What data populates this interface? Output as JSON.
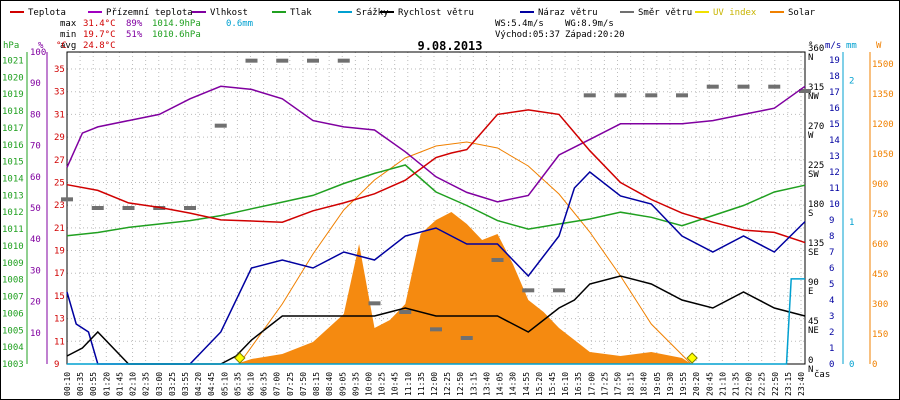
{
  "chart_data": {
    "type": "line",
    "title": "9.08.2013",
    "legend": [
      {
        "name": "Teplota",
        "color": "#d00000"
      },
      {
        "name": "Přízemní teplota",
        "color": "#a000c0"
      },
      {
        "name": "Vlhkost",
        "color": "#8000a0"
      },
      {
        "name": "Tlak",
        "color": "#20a020"
      },
      {
        "name": "Srážky",
        "color": "#00a0d0"
      },
      {
        "name": "Rychlost větru",
        "color": "#000000"
      },
      {
        "name": "Náraz větru",
        "color": "#0000a0"
      },
      {
        "name": "Směr větru",
        "color": "#707070"
      },
      {
        "name": "UV index",
        "color": "#f0e000"
      },
      {
        "name": "Solar",
        "color": "#f08000"
      }
    ],
    "stats": {
      "max_label": "max",
      "max_temp": "31.4°C",
      "max_hum": "89%",
      "max_press": "1014.9hPa",
      "rain": "0.6mm",
      "min_label": "min",
      "min_temp": "19.7°C",
      "min_hum": "51%",
      "min_press": "1010.6hPa",
      "avg_label": "avg",
      "avg_temp": "24.8°C",
      "ws": "WS:5.4m/s",
      "wg": "WG:8.9m/s",
      "sunrise": "Východ:05:37",
      "sunset": "Západ:20:20"
    },
    "axes": {
      "hpa": {
        "unit": "hPa",
        "ticks": [
          "1003",
          "1004",
          "1005",
          "1006",
          "1007",
          "1008",
          "1009",
          "1010",
          "1011",
          "1012",
          "1013",
          "1014",
          "1015",
          "1016",
          "1017",
          "1018",
          "1019",
          "1020",
          "1021"
        ]
      },
      "percent": {
        "unit": "%",
        "ticks": [
          "10",
          "20",
          "30",
          "40",
          "50",
          "60",
          "70",
          "80",
          "90",
          "100"
        ]
      },
      "temp": {
        "unit": "°C",
        "ticks": [
          "9",
          "11",
          "13",
          "15",
          "17",
          "19",
          "21",
          "23",
          "25",
          "27",
          "29",
          "31",
          "33",
          "35"
        ]
      },
      "deg": {
        "unit": "°",
        "ticks": [
          [
            "0",
            "N"
          ],
          [
            "45",
            "NE"
          ],
          [
            "90",
            "E"
          ],
          [
            "135",
            "SE"
          ],
          [
            "180",
            "S"
          ],
          [
            "225",
            "SW"
          ],
          [
            "270",
            "W"
          ],
          [
            "315",
            "NW"
          ],
          [
            "360",
            "N"
          ]
        ]
      },
      "ms": {
        "unit": "m/s",
        "ticks": [
          "0",
          "1",
          "2",
          "3",
          "4",
          "5",
          "6",
          "7",
          "8",
          "9",
          "10",
          "11",
          "12",
          "13",
          "14",
          "15",
          "16",
          "17",
          "18",
          "19"
        ]
      },
      "mm": {
        "unit": "mm",
        "ticks": [
          "0",
          "1",
          "2"
        ]
      },
      "w": {
        "unit": "W",
        "ticks": [
          "0",
          "150",
          "300",
          "450",
          "600",
          "750",
          "900",
          "1050",
          "1200",
          "1350",
          "1500"
        ]
      }
    },
    "time_label": "čas",
    "x_labels": [
      "00:10",
      "00:35",
      "00:55",
      "01:20",
      "01:45",
      "02:10",
      "02:35",
      "03:00",
      "03:25",
      "03:55",
      "04:20",
      "04:45",
      "05:10",
      "05:35",
      "06:10",
      "06:35",
      "07:00",
      "07:25",
      "07:50",
      "08:15",
      "08:40",
      "09:05",
      "09:35",
      "10:00",
      "10:25",
      "10:45",
      "11:10",
      "11:35",
      "12:00",
      "12:25",
      "12:50",
      "13:15",
      "13:40",
      "14:05",
      "14:30",
      "14:55",
      "15:20",
      "15:45",
      "16:10",
      "16:35",
      "17:00",
      "17:25",
      "17:50",
      "18:15",
      "18:40",
      "19:05",
      "19:30",
      "19:55",
      "20:20",
      "20:45",
      "21:10",
      "21:35",
      "22:00",
      "22:25",
      "22:50",
      "23:15",
      "23:40"
    ],
    "x_range_hours": [
      0,
      24
    ],
    "series": [
      {
        "name": "Teplota",
        "unit": "°C",
        "x": [
          0,
          1,
          2,
          3,
          4,
          5,
          6,
          7,
          8,
          9,
          10,
          11,
          12,
          12.5,
          13,
          14,
          15,
          16,
          17,
          18,
          19,
          20,
          21,
          22,
          23,
          24
        ],
        "values": [
          24.8,
          24.3,
          23.2,
          22.8,
          22.3,
          21.7,
          21.6,
          21.5,
          22.5,
          23.2,
          24.0,
          25.2,
          27.2,
          27.6,
          27.9,
          31.0,
          31.4,
          31.0,
          27.8,
          25.0,
          23.5,
          22.3,
          21.5,
          20.8,
          20.6,
          19.7
        ]
      },
      {
        "name": "Vlhkost",
        "unit": "%",
        "x": [
          0,
          0.5,
          1,
          2,
          3,
          4,
          5,
          6,
          7,
          8,
          9,
          10,
          11,
          12,
          13,
          14,
          15,
          16,
          17,
          18,
          19,
          20,
          21,
          22,
          23,
          24
        ],
        "values": [
          63,
          74,
          76,
          78,
          80,
          85,
          89,
          88,
          85,
          78,
          76,
          75,
          68,
          60,
          55,
          52,
          54,
          67,
          72,
          77,
          77,
          77,
          78,
          80,
          82,
          89
        ]
      },
      {
        "name": "Tlak",
        "unit": "hPa",
        "x": [
          0,
          1,
          2,
          3,
          4,
          5,
          6,
          7,
          8,
          9,
          10,
          11,
          12,
          13,
          14,
          15,
          16,
          17,
          18,
          19,
          20,
          21,
          22,
          23,
          24
        ],
        "values": [
          1010.6,
          1010.8,
          1011.1,
          1011.3,
          1011.5,
          1011.8,
          1012.2,
          1012.6,
          1013.0,
          1013.7,
          1014.3,
          1014.8,
          1013.2,
          1012.4,
          1011.5,
          1011.0,
          1011.3,
          1011.6,
          1012.0,
          1011.7,
          1011.2,
          1011.8,
          1012.4,
          1013.2,
          1013.6
        ]
      },
      {
        "name": "Náraz větru",
        "unit": "m/s",
        "x": [
          0,
          0.3,
          0.7,
          1,
          2,
          3,
          4,
          5,
          6,
          7,
          8,
          9,
          10,
          11,
          12,
          13,
          14,
          15,
          16,
          16.5,
          17,
          18,
          19,
          20,
          21,
          22,
          23,
          24
        ],
        "values": [
          4.5,
          2.5,
          2.0,
          0,
          0,
          0,
          0,
          2.0,
          6.0,
          6.5,
          6.0,
          7.0,
          6.5,
          8.0,
          8.5,
          7.5,
          7.5,
          5.5,
          8.0,
          11.0,
          12.0,
          10.5,
          10.0,
          8.0,
          7.0,
          8.0,
          7.0,
          8.9
        ]
      },
      {
        "name": "Rychlost větru",
        "unit": "m/s",
        "x": [
          0,
          0.5,
          1,
          2,
          3,
          4,
          5,
          5.5,
          6,
          7,
          8,
          9,
          10,
          11,
          12,
          13,
          14,
          15,
          16,
          16.5,
          17,
          18,
          19,
          20,
          21,
          22,
          23,
          24
        ],
        "values": [
          0.5,
          1.0,
          2.0,
          0,
          0,
          0,
          0,
          0.5,
          1.5,
          3.0,
          3.0,
          3.0,
          3.0,
          3.5,
          3.0,
          3.0,
          3.0,
          2.0,
          3.5,
          4.0,
          5.0,
          5.5,
          5.0,
          4.0,
          3.5,
          4.5,
          3.5,
          3.0
        ]
      },
      {
        "name": "Směr větru",
        "unit": "°",
        "x": [
          0,
          1,
          2,
          3,
          4,
          5,
          6,
          7,
          8,
          9,
          10,
          11,
          12,
          13,
          14,
          15,
          16,
          17,
          18,
          19,
          20,
          21,
          22,
          23,
          24
        ],
        "values": [
          190,
          180,
          180,
          180,
          180,
          275,
          350,
          350,
          350,
          350,
          70,
          60,
          40,
          30,
          120,
          85,
          85,
          310,
          310,
          310,
          310,
          320,
          320,
          320,
          315
        ]
      },
      {
        "name": "Solar",
        "unit": "W",
        "x": [
          5.5,
          6,
          7,
          8,
          9,
          9.5,
          10,
          10.5,
          11,
          11.5,
          12,
          12.5,
          13,
          13.5,
          14,
          14.5,
          15,
          15.5,
          16,
          17,
          18,
          19,
          20,
          20.3
        ],
        "values": [
          0,
          25,
          50,
          110,
          250,
          600,
          180,
          220,
          300,
          650,
          720,
          760,
          700,
          620,
          650,
          500,
          320,
          260,
          180,
          60,
          40,
          60,
          30,
          0
        ]
      },
      {
        "name": "Solar teoretický",
        "unit": "W",
        "x": [
          5.6,
          7,
          8,
          9,
          10,
          11,
          12,
          13,
          14,
          15,
          16,
          17,
          18,
          19,
          20.3
        ],
        "values": [
          0,
          300,
          550,
          770,
          920,
          1030,
          1090,
          1110,
          1080,
          990,
          850,
          660,
          440,
          200,
          0
        ]
      },
      {
        "name": "Srážky",
        "unit": "mm",
        "x": [
          0,
          23.4,
          23.55,
          24
        ],
        "values": [
          0,
          0,
          0.6,
          0.6
        ]
      }
    ]
  }
}
